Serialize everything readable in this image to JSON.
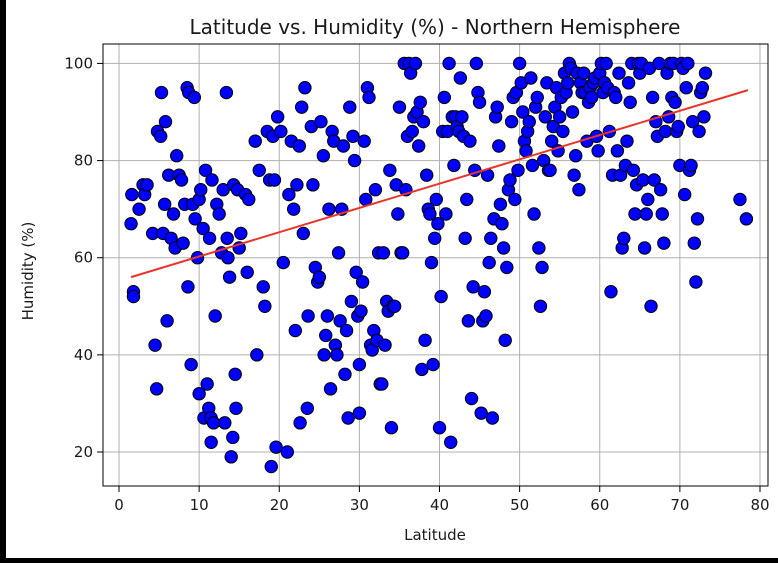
{
  "chart_data": {
    "type": "scatter",
    "title": "Latitude vs. Humidity (%) - Northern Hemisphere",
    "xlabel": "Latitude",
    "ylabel": "Humidity (%)",
    "xlim": [
      -2,
      81
    ],
    "ylim": [
      13,
      104
    ],
    "xticks": [
      0,
      10,
      20,
      30,
      40,
      50,
      60,
      70,
      80
    ],
    "yticks": [
      20,
      40,
      60,
      80,
      100
    ],
    "grid": true,
    "legend": "none",
    "colors": {
      "marker_fill": "#0000ff",
      "marker_edge": "#000000",
      "regression": "#e8342a",
      "grid": "#b0b0b0",
      "background": "#ffffff"
    },
    "regression": {
      "x": [
        1.5,
        78.5
      ],
      "y": [
        56,
        94.5
      ]
    },
    "points": [
      [
        1.5,
        67
      ],
      [
        1.6,
        73
      ],
      [
        1.8,
        53
      ],
      [
        1.8,
        52
      ],
      [
        2.5,
        70
      ],
      [
        3,
        75
      ],
      [
        3.2,
        73
      ],
      [
        3.5,
        75
      ],
      [
        4.2,
        65
      ],
      [
        4.5,
        42
      ],
      [
        4.7,
        33
      ],
      [
        4.8,
        86
      ],
      [
        5.2,
        85
      ],
      [
        5.3,
        94
      ],
      [
        5.5,
        65
      ],
      [
        5.7,
        71
      ],
      [
        5.8,
        88
      ],
      [
        6,
        47
      ],
      [
        6.2,
        77
      ],
      [
        6.5,
        64
      ],
      [
        6.8,
        69
      ],
      [
        7,
        62
      ],
      [
        7.2,
        81
      ],
      [
        7.5,
        77
      ],
      [
        7.8,
        76
      ],
      [
        8,
        63
      ],
      [
        8.2,
        71
      ],
      [
        8.5,
        95
      ],
      [
        8.6,
        54
      ],
      [
        8.7,
        94
      ],
      [
        9,
        38
      ],
      [
        9.2,
        71
      ],
      [
        9.4,
        93
      ],
      [
        9.5,
        68
      ],
      [
        9.8,
        60
      ],
      [
        10,
        72
      ],
      [
        10,
        32
      ],
      [
        10.2,
        74
      ],
      [
        10.5,
        66
      ],
      [
        10.6,
        27
      ],
      [
        10.8,
        78
      ],
      [
        11,
        34
      ],
      [
        11.2,
        29
      ],
      [
        11.3,
        64
      ],
      [
        11.5,
        22
      ],
      [
        11.5,
        27
      ],
      [
        11.6,
        76
      ],
      [
        11.8,
        26
      ],
      [
        12,
        48
      ],
      [
        12.2,
        71
      ],
      [
        12.5,
        69
      ],
      [
        12.8,
        61
      ],
      [
        13,
        74
      ],
      [
        13.2,
        26
      ],
      [
        13.4,
        94
      ],
      [
        13.5,
        64
      ],
      [
        13.6,
        60
      ],
      [
        13.8,
        56
      ],
      [
        14,
        19
      ],
      [
        14.2,
        23
      ],
      [
        14.3,
        75
      ],
      [
        14.5,
        36
      ],
      [
        14.6,
        29
      ],
      [
        14.8,
        74
      ],
      [
        15,
        62
      ],
      [
        15.2,
        65
      ],
      [
        15.8,
        73
      ],
      [
        16,
        57
      ],
      [
        16.2,
        72
      ],
      [
        17,
        84
      ],
      [
        17.2,
        40
      ],
      [
        17.5,
        78
      ],
      [
        18,
        54
      ],
      [
        18.2,
        50
      ],
      [
        18.5,
        86
      ],
      [
        18.8,
        76
      ],
      [
        19,
        17
      ],
      [
        19.2,
        85
      ],
      [
        19.4,
        76
      ],
      [
        19.6,
        21
      ],
      [
        19.8,
        89
      ],
      [
        20.2,
        86
      ],
      [
        20.5,
        59
      ],
      [
        21,
        20
      ],
      [
        21.2,
        73
      ],
      [
        21.5,
        84
      ],
      [
        21.8,
        70
      ],
      [
        22,
        45
      ],
      [
        22.2,
        75
      ],
      [
        22.5,
        83
      ],
      [
        22.6,
        26
      ],
      [
        22.8,
        91
      ],
      [
        23,
        65
      ],
      [
        23.2,
        95
      ],
      [
        23.5,
        29
      ],
      [
        23.6,
        48
      ],
      [
        24,
        87
      ],
      [
        24.2,
        75
      ],
      [
        24.5,
        58
      ],
      [
        24.8,
        55
      ],
      [
        25,
        56
      ],
      [
        25.2,
        88
      ],
      [
        25.5,
        81
      ],
      [
        25.6,
        40
      ],
      [
        25.8,
        44
      ],
      [
        26,
        48
      ],
      [
        26.2,
        70
      ],
      [
        26.4,
        33
      ],
      [
        26.6,
        86
      ],
      [
        26.8,
        84
      ],
      [
        27,
        42
      ],
      [
        27.2,
        40
      ],
      [
        27.4,
        61
      ],
      [
        27.6,
        47
      ],
      [
        27.8,
        70
      ],
      [
        28,
        83
      ],
      [
        28.2,
        36
      ],
      [
        28.4,
        45
      ],
      [
        28.6,
        27
      ],
      [
        28.8,
        91
      ],
      [
        29,
        51
      ],
      [
        29.2,
        85
      ],
      [
        29.4,
        80
      ],
      [
        29.6,
        57
      ],
      [
        29.8,
        48
      ],
      [
        30,
        38
      ],
      [
        30,
        28
      ],
      [
        30.2,
        49
      ],
      [
        30.4,
        55
      ],
      [
        30.6,
        84
      ],
      [
        30.8,
        72
      ],
      [
        31,
        95
      ],
      [
        31.2,
        93
      ],
      [
        31.4,
        42
      ],
      [
        31.6,
        41
      ],
      [
        31.8,
        45
      ],
      [
        32,
        74
      ],
      [
        32.2,
        43
      ],
      [
        32.4,
        61
      ],
      [
        32.6,
        34
      ],
      [
        32.8,
        34
      ],
      [
        33,
        61
      ],
      [
        33.2,
        42
      ],
      [
        33.4,
        51
      ],
      [
        33.6,
        49
      ],
      [
        33.8,
        78
      ],
      [
        34,
        25
      ],
      [
        34.2,
        50
      ],
      [
        34.4,
        50
      ],
      [
        34.6,
        75
      ],
      [
        34.8,
        69
      ],
      [
        35,
        91
      ],
      [
        35.2,
        61
      ],
      [
        35.4,
        61
      ],
      [
        35.6,
        100
      ],
      [
        35.8,
        74
      ],
      [
        36,
        85
      ],
      [
        36.2,
        100
      ],
      [
        36.4,
        98
      ],
      [
        36.6,
        86
      ],
      [
        36.8,
        89
      ],
      [
        37,
        100
      ],
      [
        37.2,
        90
      ],
      [
        37.4,
        83
      ],
      [
        37.6,
        92
      ],
      [
        37.8,
        37
      ],
      [
        38,
        88
      ],
      [
        38.2,
        43
      ],
      [
        38.4,
        77
      ],
      [
        38.6,
        70
      ],
      [
        38.8,
        69
      ],
      [
        39,
        59
      ],
      [
        39.2,
        38
      ],
      [
        39.4,
        64
      ],
      [
        39.6,
        72
      ],
      [
        39.8,
        67
      ],
      [
        40,
        25
      ],
      [
        40.2,
        52
      ],
      [
        40.4,
        86
      ],
      [
        40.6,
        93
      ],
      [
        40.8,
        69
      ],
      [
        41,
        86
      ],
      [
        41.2,
        100
      ],
      [
        41.4,
        22
      ],
      [
        41.6,
        89
      ],
      [
        41.8,
        79
      ],
      [
        42,
        89
      ],
      [
        42.2,
        87
      ],
      [
        42.4,
        86
      ],
      [
        42.6,
        97
      ],
      [
        42.8,
        89
      ],
      [
        43,
        85
      ],
      [
        43.2,
        64
      ],
      [
        43.4,
        72
      ],
      [
        43.6,
        47
      ],
      [
        43.8,
        84
      ],
      [
        44,
        31
      ],
      [
        44.2,
        54
      ],
      [
        44.4,
        78
      ],
      [
        44.6,
        100
      ],
      [
        44.8,
        94
      ],
      [
        45,
        92
      ],
      [
        45.2,
        28
      ],
      [
        45.4,
        47
      ],
      [
        45.6,
        53
      ],
      [
        45.8,
        48
      ],
      [
        46,
        77
      ],
      [
        46.2,
        59
      ],
      [
        46.4,
        64
      ],
      [
        46.6,
        27
      ],
      [
        46.8,
        68
      ],
      [
        47,
        89
      ],
      [
        47.2,
        91
      ],
      [
        47.4,
        83
      ],
      [
        47.6,
        71
      ],
      [
        47.8,
        67
      ],
      [
        48,
        62
      ],
      [
        48.2,
        43
      ],
      [
        48.4,
        58
      ],
      [
        48.6,
        74
      ],
      [
        48.8,
        76
      ],
      [
        49,
        88
      ],
      [
        49.2,
        93
      ],
      [
        49.4,
        72
      ],
      [
        49.6,
        94
      ],
      [
        49.8,
        78
      ],
      [
        50,
        100
      ],
      [
        50.2,
        96
      ],
      [
        50.4,
        90
      ],
      [
        50.6,
        84
      ],
      [
        50.8,
        82
      ],
      [
        51,
        86
      ],
      [
        51.2,
        88
      ],
      [
        51.4,
        97
      ],
      [
        51.6,
        79
      ],
      [
        51.8,
        69
      ],
      [
        52,
        91
      ],
      [
        52.2,
        93
      ],
      [
        52.4,
        62
      ],
      [
        52.6,
        50
      ],
      [
        52.8,
        58
      ],
      [
        53,
        80
      ],
      [
        53.2,
        89
      ],
      [
        53.4,
        96
      ],
      [
        53.6,
        78
      ],
      [
        53.8,
        78
      ],
      [
        54,
        84
      ],
      [
        54.2,
        87
      ],
      [
        54.4,
        91
      ],
      [
        54.6,
        95
      ],
      [
        54.8,
        82
      ],
      [
        55,
        89
      ],
      [
        55.2,
        93
      ],
      [
        55.4,
        86
      ],
      [
        55.6,
        98
      ],
      [
        55.8,
        94
      ],
      [
        56,
        96
      ],
      [
        56.2,
        100
      ],
      [
        56.4,
        99
      ],
      [
        56.6,
        90
      ],
      [
        56.8,
        77
      ],
      [
        57,
        81
      ],
      [
        57.2,
        98
      ],
      [
        57.4,
        74
      ],
      [
        57.6,
        96
      ],
      [
        57.8,
        94
      ],
      [
        58,
        98
      ],
      [
        58.2,
        94
      ],
      [
        58.4,
        84
      ],
      [
        58.6,
        92
      ],
      [
        58.8,
        95
      ],
      [
        59,
        93
      ],
      [
        59.2,
        96
      ],
      [
        59.4,
        97
      ],
      [
        59.6,
        85
      ],
      [
        59.8,
        82
      ],
      [
        60,
        98
      ],
      [
        60.2,
        100
      ],
      [
        60.4,
        94
      ],
      [
        60.6,
        96
      ],
      [
        60.8,
        100
      ],
      [
        61,
        95
      ],
      [
        61.2,
        86
      ],
      [
        61.4,
        53
      ],
      [
        61.6,
        77
      ],
      [
        61.8,
        94
      ],
      [
        62,
        93
      ],
      [
        62.2,
        82
      ],
      [
        62.4,
        98
      ],
      [
        62.6,
        77
      ],
      [
        62.8,
        62
      ],
      [
        63,
        64
      ],
      [
        63.2,
        79
      ],
      [
        63.4,
        84
      ],
      [
        63.6,
        96
      ],
      [
        63.8,
        92
      ],
      [
        64,
        100
      ],
      [
        64.2,
        78
      ],
      [
        64.4,
        69
      ],
      [
        64.6,
        75
      ],
      [
        64.8,
        100
      ],
      [
        65,
        98
      ],
      [
        65.2,
        100
      ],
      [
        65.4,
        76
      ],
      [
        65.6,
        62
      ],
      [
        65.8,
        69
      ],
      [
        66,
        72
      ],
      [
        66.2,
        99
      ],
      [
        66.4,
        50
      ],
      [
        66.6,
        93
      ],
      [
        66.8,
        76
      ],
      [
        67,
        88
      ],
      [
        67.2,
        85
      ],
      [
        67.4,
        100
      ],
      [
        67.6,
        74
      ],
      [
        67.8,
        69
      ],
      [
        68,
        63
      ],
      [
        68.2,
        86
      ],
      [
        68.4,
        98
      ],
      [
        68.6,
        89
      ],
      [
        68.8,
        100
      ],
      [
        69,
        93
      ],
      [
        69.2,
        100
      ],
      [
        69.4,
        92
      ],
      [
        69.6,
        86
      ],
      [
        69.8,
        87
      ],
      [
        70,
        79
      ],
      [
        70.2,
        100
      ],
      [
        70.4,
        99
      ],
      [
        70.6,
        73
      ],
      [
        70.8,
        95
      ],
      [
        71,
        100
      ],
      [
        71.2,
        78
      ],
      [
        71.4,
        79
      ],
      [
        71.6,
        88
      ],
      [
        71.8,
        63
      ],
      [
        72,
        55
      ],
      [
        72.2,
        68
      ],
      [
        72.4,
        86
      ],
      [
        72.6,
        94
      ],
      [
        72.8,
        95
      ],
      [
        73,
        89
      ],
      [
        73.2,
        98
      ],
      [
        77.5,
        72
      ],
      [
        78.3,
        68
      ]
    ]
  }
}
